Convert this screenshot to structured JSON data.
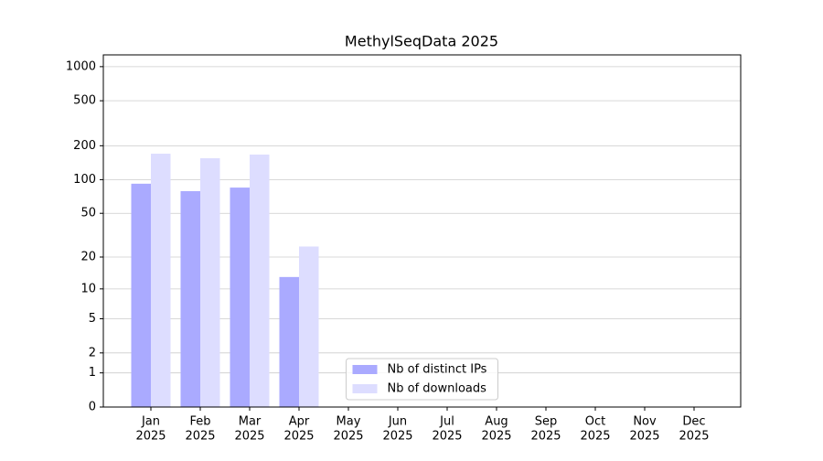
{
  "chart_data": {
    "type": "bar",
    "title": "MethylSeqData 2025",
    "categories": [
      [
        "Jan",
        "2025"
      ],
      [
        "Feb",
        "2025"
      ],
      [
        "Mar",
        "2025"
      ],
      [
        "Apr",
        "2025"
      ],
      [
        "May",
        "2025"
      ],
      [
        "Jun",
        "2025"
      ],
      [
        "Jul",
        "2025"
      ],
      [
        "Aug",
        "2025"
      ],
      [
        "Sep",
        "2025"
      ],
      [
        "Oct",
        "2025"
      ],
      [
        "Nov",
        "2025"
      ],
      [
        "Dec",
        "2025"
      ]
    ],
    "series": [
      {
        "name": "Nb of distinct IPs",
        "color": "#aaaaff",
        "values": [
          92,
          79,
          85,
          13,
          null,
          null,
          null,
          null,
          null,
          null,
          null,
          null
        ]
      },
      {
        "name": "Nb of downloads",
        "color": "#ddddff",
        "values": [
          170,
          155,
          167,
          25,
          null,
          null,
          null,
          null,
          null,
          null,
          null,
          null
        ]
      }
    ],
    "y_scale": "log1p",
    "ylim": [
      0,
      1270
    ],
    "yticks": [
      0,
      1,
      2,
      5,
      10,
      20,
      50,
      100,
      200,
      500,
      1000
    ],
    "grid": true,
    "legend": "lower center"
  }
}
